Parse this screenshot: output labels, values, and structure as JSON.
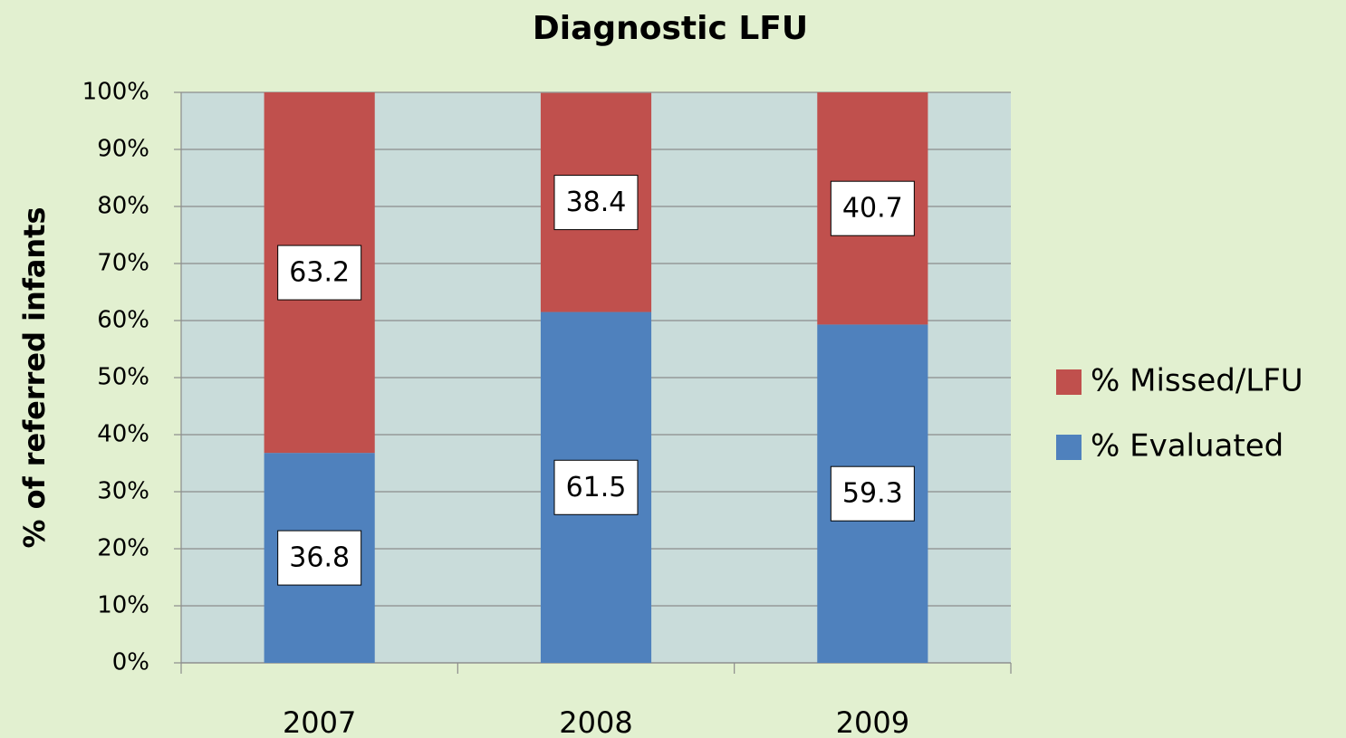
{
  "chart_data": {
    "type": "stacked_bar",
    "title": "Diagnostic LFU",
    "ylabel": "% of referred infants",
    "categories": [
      "2007",
      "2008",
      "2009"
    ],
    "series": [
      {
        "name": "% Evaluated",
        "color": "#4f81bd",
        "values": [
          36.8,
          61.5,
          59.3
        ]
      },
      {
        "name": "% Missed/LFU",
        "color": "#c0504d",
        "values": [
          63.2,
          38.4,
          40.7
        ]
      }
    ],
    "ylim": [
      0,
      100
    ],
    "yticks": [
      {
        "value": 0,
        "label": "0%"
      },
      {
        "value": 10,
        "label": "10%"
      },
      {
        "value": 20,
        "label": "20%"
      },
      {
        "value": 30,
        "label": "30%"
      },
      {
        "value": 40,
        "label": "40%"
      },
      {
        "value": 50,
        "label": "50%"
      },
      {
        "value": 60,
        "label": "60%"
      },
      {
        "value": 70,
        "label": "70%"
      },
      {
        "value": 80,
        "label": "80%"
      },
      {
        "value": 90,
        "label": "90%"
      },
      {
        "value": 100,
        "label": "100%"
      }
    ],
    "grid": true,
    "legend": "right"
  }
}
